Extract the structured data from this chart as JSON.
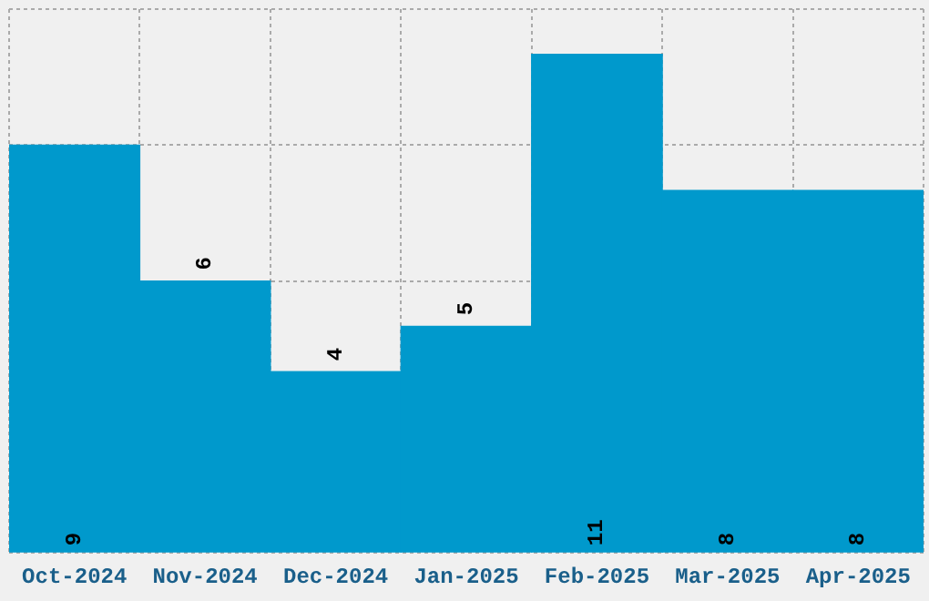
{
  "chart_data": {
    "type": "bar",
    "categories": [
      "Oct-2024",
      "Nov-2024",
      "Dec-2024",
      "Jan-2025",
      "Feb-2025",
      "Mar-2025",
      "Apr-2025"
    ],
    "values": [
      9,
      6,
      4,
      5,
      11,
      8,
      8
    ],
    "color": "#0099cc",
    "ylim": [
      0,
      12
    ],
    "grid": true,
    "tick_labels": "x",
    "data_labels": true,
    "legend": false
  }
}
